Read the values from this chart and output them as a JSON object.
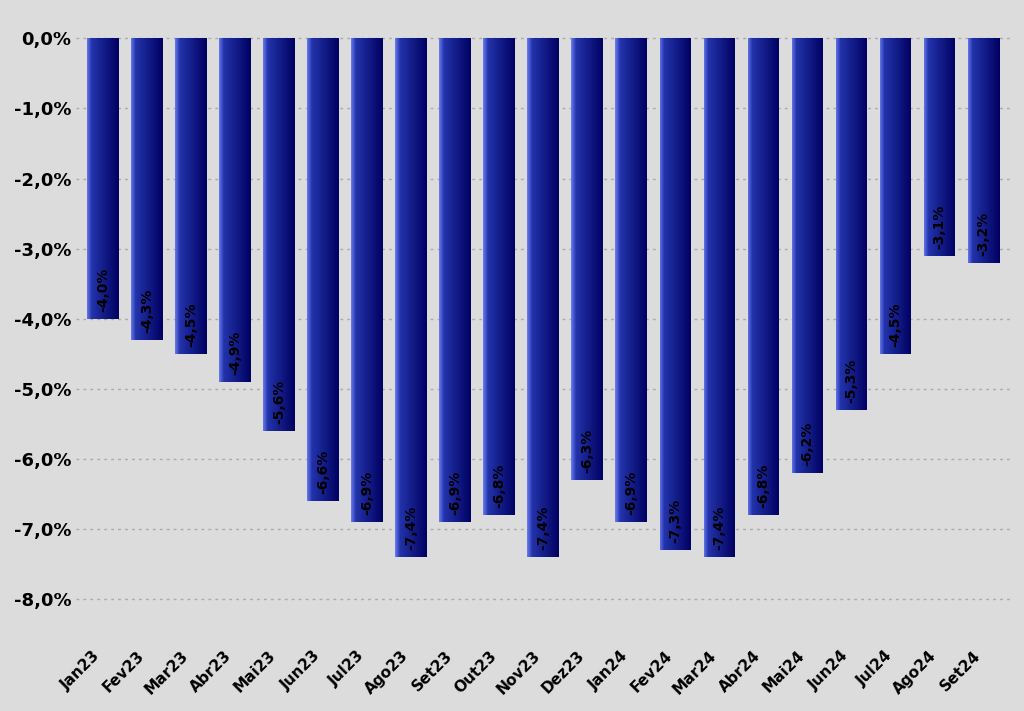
{
  "categories": [
    "Jan23",
    "Fev23",
    "Mar23",
    "Abr23",
    "Mai23",
    "Jun23",
    "Jul23",
    "Ago23",
    "Set23",
    "Out23",
    "Nov23",
    "Dez23",
    "Jan24",
    "Fev24",
    "Mar24",
    "Abr24",
    "Mai24",
    "Jun24",
    "Jul24",
    "Ago24",
    "Set24"
  ],
  "values": [
    -4.0,
    -4.3,
    -4.5,
    -4.9,
    -5.6,
    -6.6,
    -6.9,
    -7.4,
    -6.9,
    -6.8,
    -7.4,
    -6.3,
    -6.9,
    -7.3,
    -7.4,
    -6.8,
    -6.2,
    -5.3,
    -4.5,
    -3.1,
    -3.2
  ],
  "labels": [
    "-4,0%",
    "-4,3%",
    "-4,5%",
    "-4,9%",
    "-5,6%",
    "-6,6%",
    "-6,9%",
    "-7,4%",
    "-6,9%",
    "-6,8%",
    "-7,4%",
    "-6,3%",
    "-6,9%",
    "-7,3%",
    "-7,4%",
    "-6,8%",
    "-6,2%",
    "-5,3%",
    "-4,5%",
    "-3,1%",
    "-3,2%"
  ],
  "bar_color_left": "#6677ee",
  "bar_color_mid": "#2233aa",
  "bar_color_right": "#000060",
  "ylim": [
    -8.6,
    0.35
  ],
  "yticks": [
    0.0,
    -1.0,
    -2.0,
    -3.0,
    -4.0,
    -5.0,
    -6.0,
    -7.0,
    -8.0
  ],
  "ytick_labels": [
    "0,0%",
    "-1,0%",
    "-2,0%",
    "-3,0%",
    "-4,0%",
    "-5,0%",
    "-6,0%",
    "-7,0%",
    "-8,0%"
  ],
  "background_color": "#dcdcdc",
  "grid_color": "#aaaaaa",
  "label_fontsize": 10,
  "tick_fontsize": 13,
  "xtick_fontsize": 11
}
